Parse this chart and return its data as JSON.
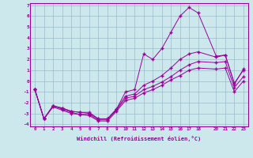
{
  "xlabel": "Windchill (Refroidissement éolien,°C)",
  "xlim": [
    -0.5,
    23.5
  ],
  "ylim": [
    -4.2,
    7.2
  ],
  "xticks": [
    0,
    1,
    2,
    3,
    4,
    5,
    6,
    7,
    8,
    9,
    10,
    11,
    12,
    13,
    14,
    15,
    16,
    17,
    18,
    20,
    21,
    22,
    23
  ],
  "yticks": [
    -4,
    -3,
    -2,
    -1,
    0,
    1,
    2,
    3,
    4,
    5,
    6,
    7
  ],
  "line_color": "#990099",
  "bg_color": "#cce8ec",
  "grid_color": "#99bbcc",
  "line1_x": [
    0,
    1,
    2,
    3,
    4,
    5,
    6,
    7,
    8,
    9,
    10,
    11,
    12,
    13,
    14,
    15,
    16,
    17,
    18,
    20,
    21,
    22,
    23
  ],
  "line1_y": [
    -0.8,
    -3.5,
    -2.3,
    -2.5,
    -2.8,
    -2.9,
    -2.9,
    -3.5,
    -3.5,
    -2.6,
    -1.0,
    -0.8,
    2.5,
    2.0,
    3.0,
    4.5,
    6.0,
    6.8,
    6.3,
    2.3,
    2.4,
    -0.3,
    1.1
  ],
  "line2_x": [
    0,
    1,
    2,
    3,
    4,
    5,
    6,
    7,
    8,
    9,
    10,
    11,
    12,
    13,
    14,
    15,
    16,
    17,
    18,
    20,
    21,
    22,
    23
  ],
  "line2_y": [
    -0.8,
    -3.5,
    -2.3,
    -2.5,
    -2.8,
    -2.9,
    -3.0,
    -3.5,
    -3.5,
    -2.6,
    -1.4,
    -1.2,
    -0.4,
    0.0,
    0.5,
    1.2,
    2.0,
    2.5,
    2.7,
    2.2,
    2.4,
    -0.2,
    1.0
  ],
  "line3_x": [
    0,
    1,
    2,
    3,
    4,
    5,
    6,
    7,
    8,
    9,
    10,
    11,
    12,
    13,
    14,
    15,
    16,
    17,
    18,
    20,
    21,
    22,
    23
  ],
  "line3_y": [
    -0.8,
    -3.5,
    -2.3,
    -2.6,
    -2.9,
    -3.1,
    -3.1,
    -3.6,
    -3.6,
    -2.7,
    -1.6,
    -1.4,
    -0.8,
    -0.5,
    -0.1,
    0.4,
    1.0,
    1.5,
    1.8,
    1.7,
    1.8,
    -0.6,
    0.4
  ],
  "line4_x": [
    0,
    1,
    2,
    3,
    4,
    5,
    6,
    7,
    8,
    9,
    10,
    11,
    12,
    13,
    14,
    15,
    16,
    17,
    18,
    20,
    21,
    22,
    23
  ],
  "line4_y": [
    -0.8,
    -3.5,
    -2.4,
    -2.7,
    -3.0,
    -3.1,
    -3.2,
    -3.7,
    -3.7,
    -2.8,
    -1.8,
    -1.6,
    -1.1,
    -0.8,
    -0.4,
    0.1,
    0.5,
    1.0,
    1.2,
    1.1,
    1.2,
    -1.0,
    0.0
  ]
}
